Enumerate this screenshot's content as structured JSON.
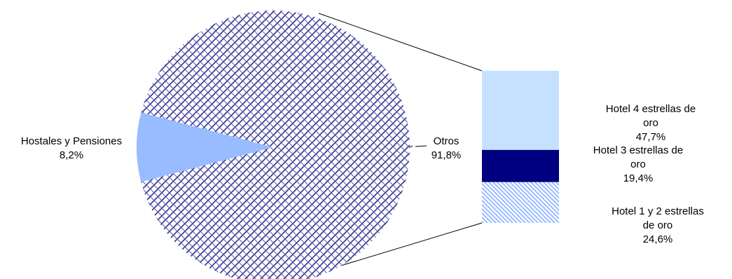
{
  "chart_data": {
    "type": "pie",
    "title": "",
    "pie": {
      "slices": [
        {
          "label": "Hostales y Pensiones",
          "value": 8.2,
          "value_text": "8,2%",
          "color": "#99BBFF",
          "pattern": "solid"
        },
        {
          "label": "Otros",
          "value": 91.8,
          "value_text": "91,8%",
          "color": "#333399",
          "pattern": "crosshatch"
        }
      ]
    },
    "bar_of_pie": {
      "breakdown_of": "Otros",
      "segments": [
        {
          "label_lines": [
            "Hotel 4 estrellas de",
            "oro"
          ],
          "value": 47.7,
          "value_text": "47,7%",
          "color": "#C6E0FF",
          "pattern": "solid"
        },
        {
          "label_lines": [
            "Hotel 3 estrellas de",
            "oro"
          ],
          "value": 19.4,
          "value_text": "19,4%",
          "color": "#000080",
          "pattern": "solid"
        },
        {
          "label_lines": [
            "Hotel  1 y 2 estrellas",
            "de oro"
          ],
          "value": 24.6,
          "value_text": "24,6%",
          "color": "#99BBFF",
          "pattern": "diagonal-stripes"
        }
      ]
    }
  }
}
